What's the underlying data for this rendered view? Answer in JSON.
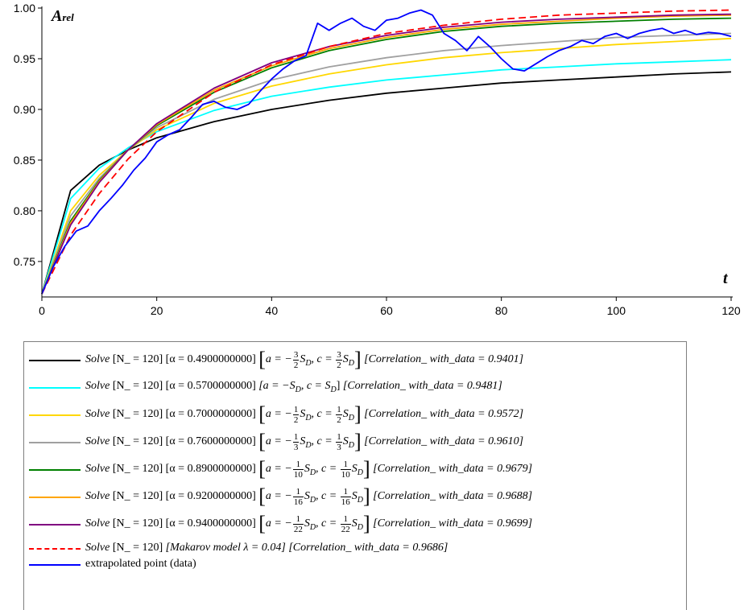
{
  "chart_data": {
    "type": "line",
    "title": "",
    "xlabel": "t",
    "ylabel": "A",
    "ylabel_sub": "rel",
    "xlim": [
      0,
      120
    ],
    "ylim": [
      0.715,
      1.0
    ],
    "xticks": [
      "0",
      "20",
      "40",
      "60",
      "80",
      "100",
      "120"
    ],
    "yticks": [
      "0.75",
      "0.80",
      "0.85",
      "0.90",
      "0.95",
      "1.00"
    ],
    "grid": false,
    "legend_position": "bottom",
    "series": [
      {
        "color": "#000000",
        "dash": false,
        "x": [
          0,
          5,
          10,
          15,
          20,
          30,
          40,
          50,
          60,
          70,
          80,
          90,
          100,
          110,
          120
        ],
        "y": [
          0.718,
          0.82,
          0.845,
          0.86,
          0.872,
          0.888,
          0.9,
          0.909,
          0.916,
          0.921,
          0.926,
          0.929,
          0.932,
          0.935,
          0.937
        ]
      },
      {
        "color": "#00ffff",
        "dash": false,
        "x": [
          0,
          5,
          10,
          15,
          20,
          30,
          40,
          50,
          60,
          70,
          80,
          90,
          100,
          110,
          120
        ],
        "y": [
          0.718,
          0.812,
          0.842,
          0.862,
          0.878,
          0.899,
          0.913,
          0.922,
          0.929,
          0.934,
          0.939,
          0.942,
          0.945,
          0.947,
          0.949
        ]
      },
      {
        "color": "#ffd700",
        "dash": false,
        "x": [
          0,
          5,
          10,
          15,
          20,
          30,
          40,
          50,
          60,
          70,
          80,
          90,
          100,
          110,
          120
        ],
        "y": [
          0.718,
          0.8,
          0.835,
          0.86,
          0.88,
          0.906,
          0.923,
          0.935,
          0.944,
          0.951,
          0.956,
          0.96,
          0.964,
          0.967,
          0.97
        ]
      },
      {
        "color": "#a0a0a0",
        "dash": false,
        "x": [
          0,
          5,
          10,
          15,
          20,
          30,
          40,
          50,
          60,
          70,
          80,
          90,
          100,
          110,
          120
        ],
        "y": [
          0.718,
          0.795,
          0.832,
          0.86,
          0.882,
          0.91,
          0.929,
          0.942,
          0.951,
          0.958,
          0.963,
          0.967,
          0.971,
          0.973,
          0.975
        ]
      },
      {
        "color": "#008000",
        "dash": false,
        "x": [
          0,
          5,
          10,
          15,
          20,
          30,
          40,
          50,
          60,
          70,
          80,
          90,
          100,
          110,
          120
        ],
        "y": [
          0.718,
          0.79,
          0.83,
          0.86,
          0.884,
          0.917,
          0.941,
          0.958,
          0.969,
          0.977,
          0.982,
          0.985,
          0.987,
          0.989,
          0.99
        ]
      },
      {
        "color": "#ffa500",
        "dash": false,
        "x": [
          0,
          5,
          10,
          15,
          20,
          30,
          40,
          50,
          60,
          70,
          80,
          90,
          100,
          110,
          120
        ],
        "y": [
          0.718,
          0.788,
          0.829,
          0.86,
          0.885,
          0.919,
          0.943,
          0.96,
          0.971,
          0.979,
          0.984,
          0.987,
          0.99,
          0.992,
          0.993
        ]
      },
      {
        "color": "#800080",
        "dash": false,
        "x": [
          0,
          5,
          10,
          15,
          20,
          30,
          40,
          50,
          60,
          70,
          80,
          90,
          100,
          110,
          120
        ],
        "y": [
          0.718,
          0.786,
          0.828,
          0.86,
          0.886,
          0.921,
          0.946,
          0.962,
          0.973,
          0.981,
          0.986,
          0.989,
          0.991,
          0.993,
          0.994
        ]
      },
      {
        "color": "#ff0000",
        "dash": true,
        "x": [
          0,
          5,
          10,
          15,
          20,
          30,
          40,
          50,
          60,
          70,
          80,
          90,
          100,
          110,
          120
        ],
        "y": [
          0.718,
          0.776,
          0.817,
          0.851,
          0.878,
          0.917,
          0.944,
          0.962,
          0.975,
          0.983,
          0.989,
          0.993,
          0.995,
          0.997,
          0.998
        ]
      },
      {
        "color": "#0000ff",
        "dash": false,
        "x": [
          0,
          2,
          4,
          6,
          8,
          10,
          12,
          14,
          16,
          18,
          20,
          22,
          24,
          26,
          28,
          30,
          32,
          34,
          36,
          38,
          40,
          42,
          44,
          46,
          48,
          50,
          52,
          54,
          56,
          58,
          60,
          62,
          64,
          66,
          68,
          70,
          72,
          74,
          76,
          78,
          80,
          82,
          84,
          86,
          88,
          90,
          92,
          94,
          96,
          98,
          100,
          102,
          104,
          106,
          108,
          110,
          112,
          114,
          116,
          118,
          120
        ],
        "y": [
          0.718,
          0.745,
          0.765,
          0.78,
          0.785,
          0.8,
          0.812,
          0.825,
          0.84,
          0.852,
          0.868,
          0.875,
          0.88,
          0.892,
          0.905,
          0.908,
          0.902,
          0.9,
          0.905,
          0.918,
          0.93,
          0.94,
          0.948,
          0.953,
          0.985,
          0.978,
          0.985,
          0.99,
          0.982,
          0.978,
          0.988,
          0.99,
          0.995,
          0.998,
          0.993,
          0.975,
          0.968,
          0.958,
          0.972,
          0.962,
          0.95,
          0.94,
          0.938,
          0.945,
          0.952,
          0.958,
          0.962,
          0.968,
          0.965,
          0.972,
          0.975,
          0.97,
          0.975,
          0.978,
          0.98,
          0.975,
          0.978,
          0.974,
          0.976,
          0.975,
          0.972
        ]
      }
    ]
  },
  "legend": [
    {
      "solve": "Solve",
      "n": "[N_ = 120]",
      "alpha": "[α = 0.4900000000]",
      "a_sign": "a = −",
      "a_num": "3",
      "a_den": "2",
      "c_num": "3",
      "c_den": "2",
      "corr": "[Correlation_ with_data = 0.9401]"
    },
    {
      "solve": "Solve",
      "n": "[N_ = 120]",
      "alpha": "[α = 0.5700000000]",
      "plain": "[a = −S",
      "plain2": "D",
      "plain3": ", c = S",
      "plain4": "D",
      "plain5": "]",
      "corr": "[Correlation_ with_data = 0.9481]"
    },
    {
      "solve": "Solve",
      "n": "[N_ = 120]",
      "alpha": "[α = 0.7000000000]",
      "a_sign": "a = −",
      "a_num": "1",
      "a_den": "2",
      "c_num": "1",
      "c_den": "2",
      "corr": "[Correlation_ with_data = 0.9572]"
    },
    {
      "solve": "Solve",
      "n": "[N_ = 120]",
      "alpha": "[α = 0.7600000000]",
      "a_sign": "a = −",
      "a_num": "1",
      "a_den": "3",
      "c_num": "1",
      "c_den": "3",
      "corr": "[Correlation_ with_data = 0.9610]"
    },
    {
      "solve": "Solve",
      "n": "[N_ = 120]",
      "alpha": "[α = 0.8900000000]",
      "a_sign": "a = −",
      "a_num": "1",
      "a_den": "10",
      "c_num": "1",
      "c_den": "10",
      "corr": "[Correlation_ with_data = 0.9679]"
    },
    {
      "solve": "Solve",
      "n": "[N_ = 120]",
      "alpha": "[α = 0.9200000000]",
      "a_sign": "a = −",
      "a_num": "1",
      "a_den": "16",
      "c_num": "1",
      "c_den": "16",
      "corr": "[Correlation_ with_data = 0.9688]"
    },
    {
      "solve": "Solve",
      "n": "[N_ = 120]",
      "alpha": "[α = 0.9400000000]",
      "a_sign": "a = −",
      "a_num": "1",
      "a_den": "22",
      "c_num": "1",
      "c_den": "22",
      "corr": "[Correlation_ with_data = 0.9699]"
    },
    {
      "solve": "Solve",
      "n": "[N_ = 120]",
      "makarov": "[Makarov model λ = 0.04]",
      "corr": "[Correlation_ with_data = 0.9686]"
    },
    {
      "data_label": "extrapolated point (data)"
    }
  ]
}
